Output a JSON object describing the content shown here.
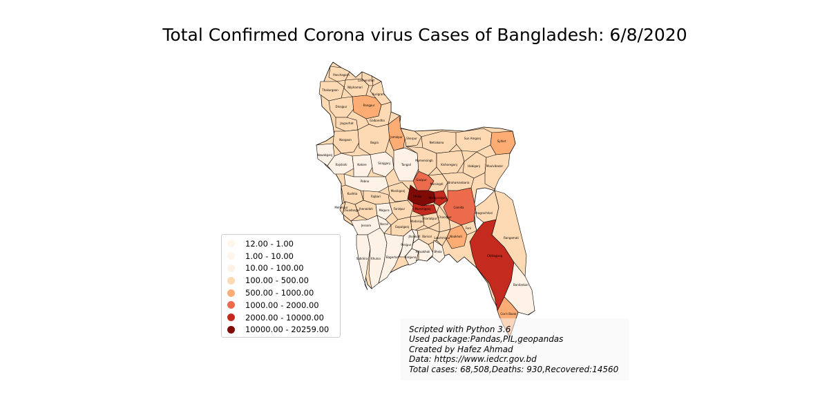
{
  "title": "Total Confirmed Corona virus Cases of Bangladesh: 6/8/2020",
  "legend": [
    {
      "label": "12.00 - 1.00",
      "color": "#fff5eb"
    },
    {
      "label": "1.00 - 10.00",
      "color": "#fff5eb"
    },
    {
      "label": "10.00 - 100.00",
      "color": "#fef2e6"
    },
    {
      "label": "100.00 - 500.00",
      "color": "#fdd9b4"
    },
    {
      "label": "500.00 - 1000.00",
      "color": "#fdad74"
    },
    {
      "label": "1000.00 - 2000.00",
      "color": "#ec6b4d"
    },
    {
      "label": "2000.00 - 10000.00",
      "color": "#c42a1d"
    },
    {
      "label": "10000.00 - 20259.00",
      "color": "#7f0a06"
    }
  ],
  "info_lines": [
    "Scripted with Python 3.6",
    "Used package:Pandas,PIL,geopandas",
    "Created by Hafez Ahmad",
    "Data: https://www.iedcr.gov.bd",
    "Total cases: 68,508,Deaths: 930,Recovered:14560"
  ],
  "districts": [
    {
      "name": "Panchagarh",
      "cls": 3
    },
    {
      "name": "Thakurgaon",
      "cls": 3
    },
    {
      "name": "Nilphamari",
      "cls": 3
    },
    {
      "name": "Lalmonirhat",
      "cls": 3
    },
    {
      "name": "Kurigram",
      "cls": 3
    },
    {
      "name": "Dinajpur",
      "cls": 3
    },
    {
      "name": "Rangpur",
      "cls": 4
    },
    {
      "name": "Gaibandha",
      "cls": 3
    },
    {
      "name": "Joypurhat",
      "cls": 3
    },
    {
      "name": "Naogaon",
      "cls": 3
    },
    {
      "name": "Bogra",
      "cls": 3
    },
    {
      "name": "Jamalpur",
      "cls": 4
    },
    {
      "name": "Sherpur",
      "cls": 3
    },
    {
      "name": "Netrakona",
      "cls": 3
    },
    {
      "name": "Sun Amgonj",
      "cls": 3
    },
    {
      "name": "Sylhet",
      "cls": 4
    },
    {
      "name": "Nawabganj",
      "cls": 2
    },
    {
      "name": "Rajshahi",
      "cls": 2
    },
    {
      "name": "Natore",
      "cls": 2
    },
    {
      "name": "Sirajganj",
      "cls": 2
    },
    {
      "name": "Tangail",
      "cls": 2
    },
    {
      "name": "Mymensingh",
      "cls": 3
    },
    {
      "name": "Kishoreganj",
      "cls": 3
    },
    {
      "name": "Habiganj",
      "cls": 3
    },
    {
      "name": "Moulvibazar",
      "cls": 3
    },
    {
      "name": "Pabna",
      "cls": 2
    },
    {
      "name": "Gazipur",
      "cls": 5
    },
    {
      "name": "Narsingdi",
      "cls": 3
    },
    {
      "name": "Brahamanbaria",
      "cls": 3
    },
    {
      "name": "Kushtia",
      "cls": 3
    },
    {
      "name": "Rajbari",
      "cls": 3
    },
    {
      "name": "Manikganj",
      "cls": 3
    },
    {
      "name": "Dhaka",
      "cls": 7
    },
    {
      "name": "Narayanganj",
      "cls": 6
    },
    {
      "name": "Chuadanga",
      "cls": 3
    },
    {
      "name": "Meherpur",
      "cls": 3
    },
    {
      "name": "Jhenaidah",
      "cls": 3
    },
    {
      "name": "Magura",
      "cls": 2
    },
    {
      "name": "Faridpur",
      "cls": 3
    },
    {
      "name": "Munshiganj",
      "cls": 6
    },
    {
      "name": "Comilla",
      "cls": 5
    },
    {
      "name": "Jessore",
      "cls": 2
    },
    {
      "name": "Narail",
      "cls": 2
    },
    {
      "name": "Gopalganj",
      "cls": 3
    },
    {
      "name": "Madaripur",
      "cls": 3
    },
    {
      "name": "Shariatpur",
      "cls": 3
    },
    {
      "name": "Chandpur",
      "cls": 3
    },
    {
      "name": "Feni",
      "cls": 3
    },
    {
      "name": "Noakhali",
      "cls": 4
    },
    {
      "name": "Lakshmipur",
      "cls": 3
    },
    {
      "name": "Satkhira",
      "cls": 2
    },
    {
      "name": "Khulna",
      "cls": 2
    },
    {
      "name": "Bagerhat",
      "cls": 2
    },
    {
      "name": "Pirojpur",
      "cls": 2
    },
    {
      "name": "Jhalokati",
      "cls": 2
    },
    {
      "name": "Barisal",
      "cls": 3
    },
    {
      "name": "Barguna",
      "cls": 2
    },
    {
      "name": "Patuakhali",
      "cls": 2
    },
    {
      "name": "Bhola",
      "cls": 2
    },
    {
      "name": "Khagrachhari",
      "cls": 3
    },
    {
      "name": "Rangamati",
      "cls": 3
    },
    {
      "name": "Chittagong",
      "cls": 6
    },
    {
      "name": "Bandarban",
      "cls": 2
    },
    {
      "name": "Cox's Bazar",
      "cls": 4
    }
  ]
}
